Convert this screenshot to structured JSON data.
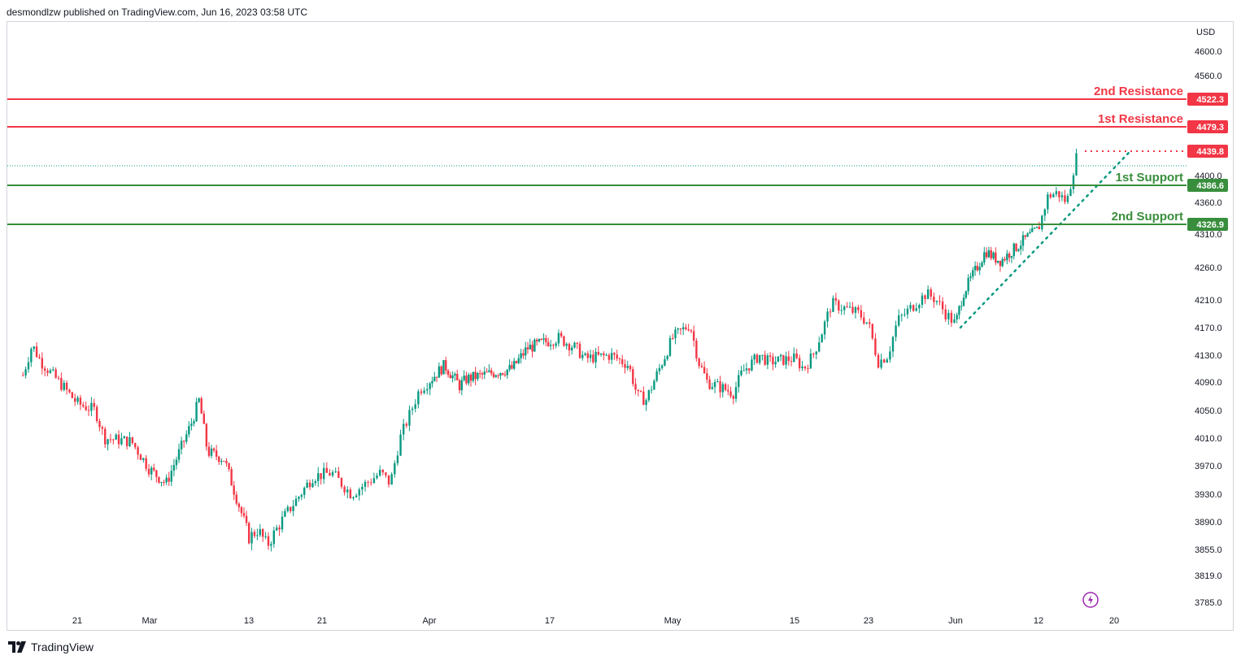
{
  "header": {
    "publisher_text": "desmondlzw published on TradingView.com, Jun 16, 2023 03:58 UTC"
  },
  "footer": {
    "brand_label": "TradingView",
    "logo_icon": "tradingview-logo-icon"
  },
  "colors": {
    "up": "#089981",
    "down": "#f23645",
    "resistance": "#f23645",
    "support": "#388e3c",
    "trendline": "#089981",
    "axis_text": "#131722"
  },
  "chart_data": {
    "type": "candlestick",
    "title": "",
    "currency_label": "USD",
    "y_ticks": [
      "4600.0",
      "4560.0",
      "4400.0",
      "4360.0",
      "4310.0",
      "4260.0",
      "4210.0",
      "4170.0",
      "4130.0",
      "4090.0",
      "4050.0",
      "4010.0",
      "3970.0",
      "3930.0",
      "3890.0",
      "3855.0",
      "3819.0",
      "3785.0"
    ],
    "x_ticks": [
      "21",
      "Mar",
      "13",
      "21",
      "Apr",
      "17",
      "May",
      "15",
      "23",
      "Jun",
      "12",
      "20"
    ],
    "levels": [
      {
        "name": "2nd Resistance",
        "value": 4522.3,
        "tag": "4522.3",
        "kind": "resistance"
      },
      {
        "name": "1st Resistance",
        "value": 4479.3,
        "tag": "4479.3",
        "kind": "resistance"
      },
      {
        "name": "1st Support",
        "value": 4386.6,
        "tag": "4386.6",
        "kind": "support"
      },
      {
        "name": "2nd Support",
        "value": 4326.9,
        "tag": "4326.9",
        "kind": "support"
      }
    ],
    "last_price": {
      "value": 4439.8,
      "tag": "4439.8"
    },
    "trendline": {
      "from": 4170.0,
      "to": 4440.0,
      "style": "dotted"
    },
    "price_path": [
      {
        "d": "Feb 15",
        "p": 4100
      },
      {
        "d": "Feb 16",
        "p": 4145
      },
      {
        "d": "Feb 17",
        "p": 4120
      },
      {
        "d": "Feb 21",
        "p": 4060
      },
      {
        "d": "Feb 23",
        "p": 4050
      },
      {
        "d": "Feb 24",
        "p": 4010
      },
      {
        "d": "Feb 27",
        "p": 4005
      },
      {
        "d": "Mar 1",
        "p": 3965
      },
      {
        "d": "Mar 3",
        "p": 3945
      },
      {
        "d": "Mar 6",
        "p": 4030
      },
      {
        "d": "Mar 7",
        "p": 4065
      },
      {
        "d": "Mar 8",
        "p": 3990
      },
      {
        "d": "Mar 10",
        "p": 3980
      },
      {
        "d": "Mar 13",
        "p": 3870
      },
      {
        "d": "Mar 14",
        "p": 3880
      },
      {
        "d": "Mar 15",
        "p": 3860
      },
      {
        "d": "Mar 17",
        "p": 3900
      },
      {
        "d": "Mar 20",
        "p": 3955
      },
      {
        "d": "Mar 22",
        "p": 3960
      },
      {
        "d": "Mar 24",
        "p": 3930
      },
      {
        "d": "Mar 27",
        "p": 3960
      },
      {
        "d": "Mar 28",
        "p": 3945
      },
      {
        "d": "Mar 29",
        "p": 4010
      },
      {
        "d": "Mar 31",
        "p": 4080
      },
      {
        "d": "Apr 3",
        "p": 4115
      },
      {
        "d": "Apr 5",
        "p": 4085
      },
      {
        "d": "Apr 6",
        "p": 4095
      },
      {
        "d": "Apr 10",
        "p": 4105
      },
      {
        "d": "Apr 12",
        "p": 4110
      },
      {
        "d": "Apr 14",
        "p": 4140
      },
      {
        "d": "Apr 18",
        "p": 4155
      },
      {
        "d": "Apr 20",
        "p": 4140
      },
      {
        "d": "Apr 21",
        "p": 4125
      },
      {
        "d": "Apr 24",
        "p": 4130
      },
      {
        "d": "Apr 26",
        "p": 4115
      },
      {
        "d": "Apr 27",
        "p": 4070
      },
      {
        "d": "Apr 28",
        "p": 4065
      },
      {
        "d": "May 1",
        "p": 4155
      },
      {
        "d": "May 3",
        "p": 4175
      },
      {
        "d": "May 4",
        "p": 4120
      },
      {
        "d": "May 5",
        "p": 4090
      },
      {
        "d": "May 8",
        "p": 4075
      },
      {
        "d": "May 9",
        "p": 4105
      },
      {
        "d": "May 11",
        "p": 4130
      },
      {
        "d": "May 12",
        "p": 4120
      },
      {
        "d": "May 15",
        "p": 4125
      },
      {
        "d": "May 16",
        "p": 4110
      },
      {
        "d": "May 17",
        "p": 4130
      },
      {
        "d": "May 18",
        "p": 4165
      },
      {
        "d": "May 19",
        "p": 4205
      },
      {
        "d": "May 22",
        "p": 4190
      },
      {
        "d": "May 23",
        "p": 4175
      },
      {
        "d": "May 24",
        "p": 4120
      },
      {
        "d": "May 25",
        "p": 4130
      },
      {
        "d": "May 26",
        "p": 4180
      },
      {
        "d": "May 29",
        "p": 4220
      },
      {
        "d": "May 30",
        "p": 4210
      },
      {
        "d": "May 31",
        "p": 4190
      },
      {
        "d": "Jun 1",
        "p": 4175
      },
      {
        "d": "Jun 2",
        "p": 4220
      },
      {
        "d": "Jun 5",
        "p": 4285
      },
      {
        "d": "Jun 6",
        "p": 4275
      },
      {
        "d": "Jun 7",
        "p": 4270
      },
      {
        "d": "Jun 8",
        "p": 4280
      },
      {
        "d": "Jun 9",
        "p": 4290
      },
      {
        "d": "Jun 12",
        "p": 4320
      },
      {
        "d": "Jun 13",
        "p": 4370
      },
      {
        "d": "Jun 14",
        "p": 4375
      },
      {
        "d": "Jun 15",
        "p": 4360
      },
      {
        "d": "Jun 16",
        "p": 4430
      }
    ],
    "grid": false,
    "price_scale": "right"
  }
}
